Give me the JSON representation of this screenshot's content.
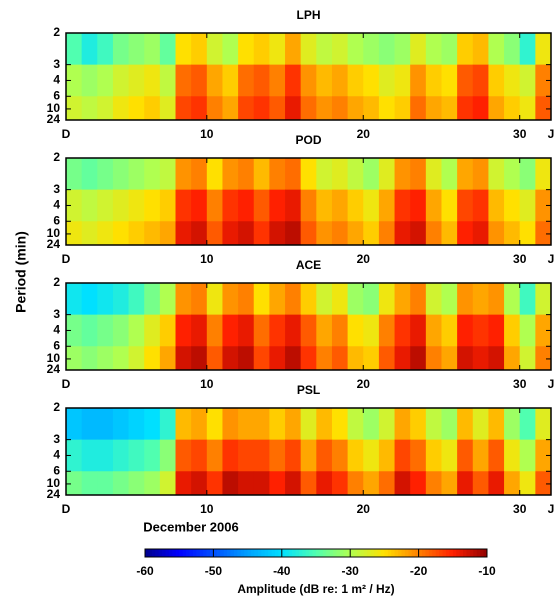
{
  "chart_data": {
    "type": "heatmap",
    "xlabel": "December  2006",
    "ylabel": "Period  (min)",
    "xlim": [
      0,
      31
    ],
    "xticks": [
      {
        "value": 0,
        "label": "D"
      },
      {
        "value": 9,
        "label": "10"
      },
      {
        "value": 19,
        "label": "20"
      },
      {
        "value": 29,
        "label": "30"
      },
      {
        "value": 31,
        "label": "J"
      }
    ],
    "xbins": [
      0,
      1,
      2,
      3,
      4,
      5,
      6,
      7,
      8,
      9,
      10,
      11,
      12,
      13,
      14,
      15,
      16,
      17,
      18,
      19,
      20,
      21,
      22,
      23,
      24,
      25,
      26,
      27,
      28,
      29,
      30,
      31
    ],
    "ylim": [
      2,
      24
    ],
    "yscale": "reciprocal",
    "yticks": [
      2,
      3,
      4,
      6,
      10,
      24
    ],
    "ybins": [
      2,
      3,
      6,
      24
    ],
    "panels": [
      {
        "title": "LPH",
        "values": [
          [
            -35,
            -38,
            -36,
            -33,
            -32,
            -31,
            -34,
            -25,
            -24,
            -28,
            -30,
            -25,
            -24,
            -26,
            -22,
            -27,
            -29,
            -28,
            -30,
            -31,
            -32,
            -31,
            -27,
            -30,
            -31,
            -24,
            -23,
            -30,
            -32,
            -37,
            -26
          ],
          [
            -30,
            -31,
            -30,
            -28,
            -27,
            -26,
            -29,
            -19,
            -18,
            -22,
            -24,
            -19,
            -18,
            -20,
            -16,
            -21,
            -23,
            -22,
            -24,
            -25,
            -27,
            -26,
            -21,
            -24,
            -25,
            -18,
            -17,
            -24,
            -26,
            -28,
            -20
          ],
          [
            -28,
            -29,
            -28,
            -26,
            -25,
            -24,
            -27,
            -17,
            -16,
            -20,
            -22,
            -17,
            -16,
            -18,
            -14,
            -19,
            -21,
            -20,
            -22,
            -23,
            -25,
            -24,
            -19,
            -22,
            -23,
            -16,
            -15,
            -22,
            -24,
            -26,
            -18
          ]
        ]
      },
      {
        "title": "POD",
        "values": [
          [
            -33,
            -34,
            -33,
            -32,
            -31,
            -30,
            -29,
            -21,
            -20,
            -25,
            -21,
            -20,
            -23,
            -20,
            -19,
            -25,
            -28,
            -27,
            -29,
            -31,
            -27,
            -21,
            -20,
            -27,
            -30,
            -22,
            -21,
            -28,
            -30,
            -32,
            -26
          ],
          [
            -28,
            -29,
            -28,
            -27,
            -26,
            -25,
            -24,
            -16,
            -15,
            -20,
            -16,
            -15,
            -18,
            -15,
            -14,
            -20,
            -23,
            -22,
            -24,
            -26,
            -22,
            -16,
            -15,
            -22,
            -25,
            -17,
            -16,
            -23,
            -25,
            -27,
            -21
          ],
          [
            -26,
            -27,
            -26,
            -25,
            -24,
            -23,
            -22,
            -14,
            -13,
            -18,
            -14,
            -13,
            -16,
            -13,
            -12,
            -18,
            -21,
            -20,
            -22,
            -24,
            -20,
            -14,
            -13,
            -20,
            -23,
            -15,
            -14,
            -21,
            -23,
            -25,
            -19
          ]
        ]
      },
      {
        "title": "ACE",
        "values": [
          [
            -39,
            -40,
            -39,
            -38,
            -36,
            -33,
            -30,
            -21,
            -20,
            -26,
            -21,
            -20,
            -25,
            -22,
            -20,
            -24,
            -28,
            -26,
            -31,
            -32,
            -26,
            -22,
            -20,
            -28,
            -30,
            -21,
            -22,
            -21,
            -30,
            -36,
            -28
          ],
          [
            -33,
            -34,
            -33,
            -32,
            -30,
            -27,
            -24,
            -15,
            -14,
            -20,
            -15,
            -14,
            -19,
            -16,
            -14,
            -18,
            -22,
            -20,
            -25,
            -26,
            -20,
            -16,
            -14,
            -22,
            -24,
            -15,
            -16,
            -15,
            -24,
            -30,
            -22
          ],
          [
            -31,
            -32,
            -31,
            -30,
            -28,
            -25,
            -22,
            -13,
            -12,
            -18,
            -13,
            -12,
            -17,
            -14,
            -12,
            -16,
            -20,
            -18,
            -23,
            -24,
            -18,
            -14,
            -12,
            -20,
            -22,
            -13,
            -14,
            -13,
            -22,
            -28,
            -20
          ]
        ]
      },
      {
        "title": "PSL",
        "values": [
          [
            -42,
            -43,
            -43,
            -42,
            -41,
            -40,
            -37,
            -23,
            -22,
            -25,
            -21,
            -22,
            -22,
            -24,
            -22,
            -27,
            -23,
            -25,
            -29,
            -31,
            -28,
            -22,
            -24,
            -29,
            -31,
            -23,
            -27,
            -23,
            -31,
            -35,
            -27
          ],
          [
            -37,
            -38,
            -38,
            -37,
            -36,
            -35,
            -32,
            -18,
            -17,
            -20,
            -16,
            -17,
            -17,
            -19,
            -17,
            -22,
            -18,
            -20,
            -24,
            -26,
            -23,
            -17,
            -19,
            -24,
            -26,
            -18,
            -22,
            -18,
            -26,
            -30,
            -22
          ],
          [
            -33,
            -34,
            -34,
            -33,
            -32,
            -31,
            -28,
            -14,
            -13,
            -16,
            -12,
            -13,
            -13,
            -15,
            -13,
            -18,
            -14,
            -16,
            -20,
            -22,
            -19,
            -13,
            -15,
            -20,
            -22,
            -14,
            -18,
            -14,
            -22,
            -26,
            -18
          ]
        ]
      }
    ],
    "colorbar": {
      "label": "Amplitude  (dB re: 1 m² / Hz)",
      "clim": [
        -60,
        -10
      ],
      "ticks": [
        -60,
        -50,
        -40,
        -30,
        -20,
        -10
      ],
      "colors": [
        "#00008c",
        "#0000ff",
        "#0050ff",
        "#00a0ff",
        "#00e0ff",
        "#50ffb0",
        "#b0ff50",
        "#ffe000",
        "#ff8000",
        "#ff2000",
        "#900000"
      ]
    }
  }
}
